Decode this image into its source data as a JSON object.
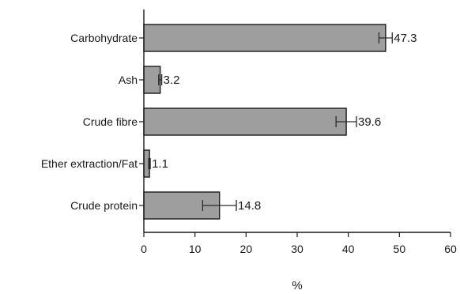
{
  "chart_data": {
    "type": "bar",
    "orientation": "horizontal",
    "categories": [
      "Carbohydrate",
      "Ash",
      "Crude fibre",
      "Ether extraction/Fat",
      "Crude protein"
    ],
    "values": [
      47.3,
      3.2,
      39.6,
      1.1,
      14.8
    ],
    "error": [
      1.3,
      0.3,
      2.0,
      0.15,
      3.3
    ],
    "value_labels": [
      "47.3",
      "3.2",
      "39.6",
      "1.1",
      "14.8"
    ],
    "title": "",
    "xlabel": "%",
    "ylabel": "",
    "xlim": [
      0,
      60
    ],
    "xticks": [
      0,
      10,
      20,
      30,
      40,
      50,
      60
    ],
    "xtick_labels": [
      "0",
      "10",
      "20",
      "30",
      "40",
      "50",
      "60"
    ],
    "grid": false,
    "legend": "none",
    "bar_color": "#9e9e9e",
    "edge_color": "#1a1a1a"
  }
}
